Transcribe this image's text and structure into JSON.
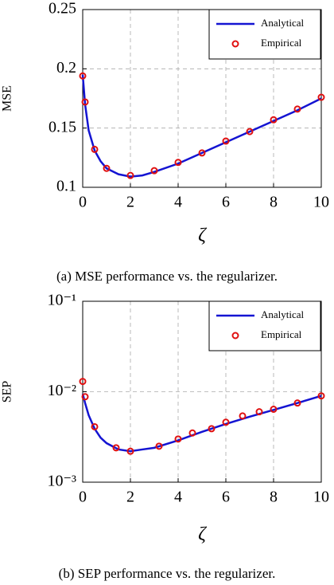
{
  "chart_data": [
    {
      "type": "line",
      "ylabel": "MSE",
      "xlabel": "ζ",
      "caption": "(a) MSE performance vs. the regularizer.",
      "xlim": [
        0,
        10
      ],
      "xticks": [
        0,
        2,
        4,
        6,
        8,
        10
      ],
      "ylim": [
        0.1,
        0.25
      ],
      "yticks": [
        0.1,
        0.15,
        0.2,
        0.25
      ],
      "yscale": "linear",
      "grid": true,
      "legend": "upper right",
      "series": [
        {
          "name": "Analytical",
          "style": "line",
          "color": "#1414d2",
          "x": [
            0,
            0.1,
            0.25,
            0.5,
            0.75,
            1,
            1.5,
            2,
            2.5,
            3,
            4,
            5,
            6,
            7,
            8,
            9,
            10
          ],
          "values": [
            0.195,
            0.17,
            0.148,
            0.131,
            0.122,
            0.116,
            0.111,
            0.109,
            0.11,
            0.113,
            0.12,
            0.129,
            0.138,
            0.147,
            0.156,
            0.165,
            0.175
          ]
        },
        {
          "name": "Empirical",
          "style": "markers",
          "color": "#e01010",
          "x": [
            0,
            0.1,
            0.5,
            1,
            2,
            3,
            4,
            5,
            6,
            7,
            8,
            9,
            10
          ],
          "values": [
            0.194,
            0.172,
            0.132,
            0.116,
            0.11,
            0.114,
            0.121,
            0.129,
            0.139,
            0.147,
            0.157,
            0.166,
            0.176
          ]
        }
      ]
    },
    {
      "type": "line",
      "ylabel": "SEP",
      "xlabel": "ζ",
      "caption": "(b) SEP performance vs. the regularizer.",
      "xlim": [
        0,
        10
      ],
      "xticks": [
        0,
        2,
        4,
        6,
        8,
        10
      ],
      "ylim": [
        0.001,
        0.1
      ],
      "yticks": [
        {
          "value": 0.001,
          "label": "10⁻³"
        },
        {
          "value": 0.01,
          "label": "10⁻²"
        },
        {
          "value": 0.1,
          "label": "10⁻¹"
        }
      ],
      "yscale": "log",
      "grid": true,
      "legend": "upper right",
      "series": [
        {
          "name": "Analytical",
          "style": "line",
          "color": "#1414d2",
          "x": [
            0,
            0.1,
            0.25,
            0.5,
            0.75,
            1,
            1.5,
            2,
            2.5,
            3,
            4,
            5,
            6,
            7,
            8,
            9,
            10
          ],
          "values": [
            0.0095,
            0.0075,
            0.0055,
            0.0039,
            0.0031,
            0.0027,
            0.0023,
            0.0022,
            0.0023,
            0.0024,
            0.0029,
            0.0036,
            0.0044,
            0.0053,
            0.0063,
            0.0075,
            0.009
          ]
        },
        {
          "name": "Empirical",
          "style": "markers",
          "color": "#e01010",
          "x": [
            0,
            0.1,
            0.5,
            1.4,
            2,
            3.2,
            4,
            4.6,
            5.4,
            6,
            6.7,
            7.4,
            8,
            9,
            10
          ],
          "values": [
            0.013,
            0.0088,
            0.0041,
            0.0024,
            0.0022,
            0.0025,
            0.003,
            0.0035,
            0.0039,
            0.0046,
            0.0054,
            0.006,
            0.0064,
            0.0075,
            0.009
          ]
        }
      ]
    }
  ]
}
